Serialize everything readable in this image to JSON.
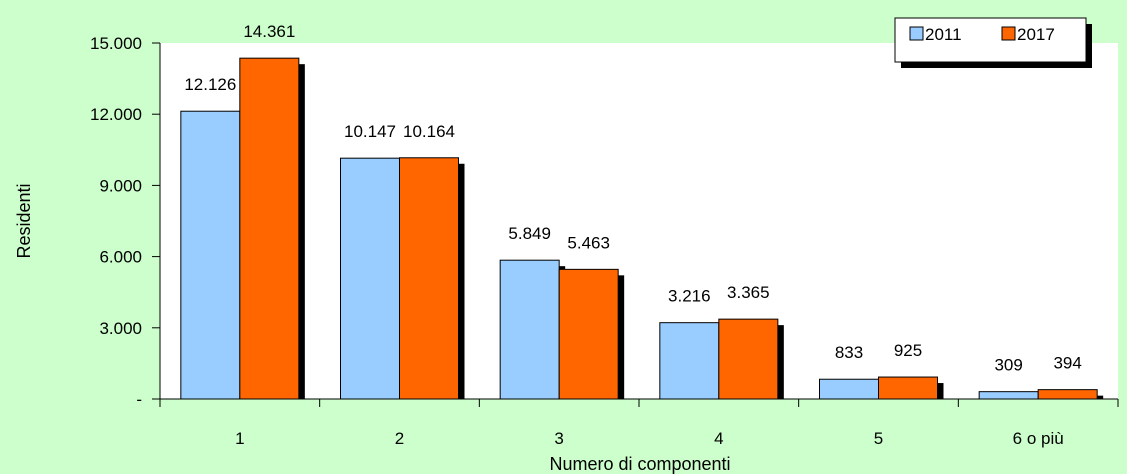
{
  "chart_data": {
    "type": "bar",
    "title": "",
    "xlabel": "Numero di componenti",
    "ylabel": "Residenti",
    "categories": [
      "1",
      "2",
      "3",
      "4",
      "5",
      "6 o più"
    ],
    "series": [
      {
        "name": "2011",
        "color": "#99ccff",
        "values": [
          12126,
          10147,
          5849,
          3216,
          833,
          309
        ],
        "labels": [
          "12.126",
          "10.147",
          "5.849",
          "3.216",
          "833",
          "309"
        ]
      },
      {
        "name": "2017",
        "color": "#ff6600",
        "values": [
          14361,
          10164,
          5463,
          3365,
          925,
          394
        ],
        "labels": [
          "14.361",
          "10.164",
          "5.463",
          "3.365",
          "925",
          "394"
        ]
      }
    ],
    "ylim": [
      0,
      15000
    ],
    "yticks": [
      0,
      3000,
      6000,
      9000,
      12000,
      15000
    ],
    "ytick_labels": [
      "-",
      "3.000",
      "6.000",
      "9.000",
      "12.000",
      "15.000"
    ],
    "grid": false,
    "legend_position": "top-right",
    "plot_background": "#ffffff",
    "page_background": "#ccffcc"
  }
}
